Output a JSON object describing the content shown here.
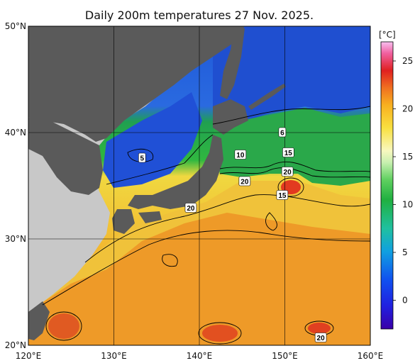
{
  "title": "Daily 200m temperatures 27 Nov. 2025.",
  "map": {
    "lon_range": [
      120,
      160
    ],
    "lat_range": [
      20,
      50
    ],
    "lon_ticks": [
      {
        "value": 120,
        "label": "120°E"
      },
      {
        "value": 130,
        "label": "130°E"
      },
      {
        "value": 140,
        "label": "140°E"
      },
      {
        "value": 150,
        "label": "150°E"
      },
      {
        "value": 160,
        "label": "160°E"
      }
    ],
    "lat_ticks": [
      {
        "value": 20,
        "label": "20°N"
      },
      {
        "value": 30,
        "label": "30°N"
      },
      {
        "value": 40,
        "label": "40°N"
      },
      {
        "value": 50,
        "label": "50°N"
      }
    ],
    "grid": true,
    "land_color": "#5a5a5a",
    "outside_land_color": "#c8c8c8"
  },
  "colorbar": {
    "unit_label": "[°C]",
    "range": [
      -3,
      27
    ],
    "ticks": [
      "0",
      "5",
      "10",
      "15",
      "20",
      "25"
    ],
    "tick_values": [
      0,
      5,
      10,
      15,
      20,
      25
    ]
  },
  "contour_labels": [
    {
      "text": "5",
      "lon": 133.3,
      "lat": 37.6
    },
    {
      "text": "6",
      "lon": 149.7,
      "lat": 40.0
    },
    {
      "text": "10",
      "lon": 144.8,
      "lat": 37.9
    },
    {
      "text": "15",
      "lon": 150.4,
      "lat": 38.1
    },
    {
      "text": "20",
      "lon": 150.3,
      "lat": 36.3
    },
    {
      "text": "20",
      "lon": 145.3,
      "lat": 35.4
    },
    {
      "text": "15",
      "lon": 149.7,
      "lat": 34.1
    },
    {
      "text": "20",
      "lon": 139.0,
      "lat": 32.9
    },
    {
      "text": "20",
      "lon": 154.2,
      "lat": 20.7
    }
  ]
}
